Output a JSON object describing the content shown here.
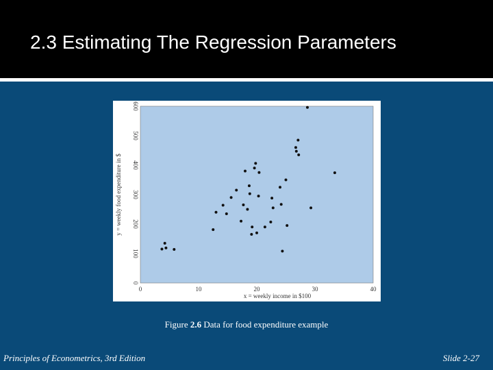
{
  "slide": {
    "title": "2.3 Estimating The Regression Parameters",
    "footer_left": "Principles of Econometrics, 3rd Edition",
    "footer_right": "Slide 2-27"
  },
  "caption": {
    "prefix": "Figure ",
    "number": "2.6",
    "text": " Data for food expenditure example"
  },
  "colors": {
    "background": "#0a4a78",
    "plot_area": "#aecbe8",
    "points": "#111111"
  },
  "chart_data": {
    "type": "scatter",
    "title": "",
    "xlabel": "x = weekly income in $100",
    "ylabel": "y = weekly food expenditure in $",
    "xlim": [
      0,
      40
    ],
    "ylim": [
      0,
      600
    ],
    "xticks": [
      0,
      10,
      20,
      30,
      40
    ],
    "yticks": [
      0,
      100,
      200,
      300,
      400,
      500,
      600
    ],
    "grid": false,
    "legend": "none",
    "series": [
      {
        "points": [
          [
            3.7,
            115
          ],
          [
            4.2,
            135
          ],
          [
            4.4,
            119
          ],
          [
            5.8,
            114
          ],
          [
            12.5,
            181
          ],
          [
            13.0,
            240
          ],
          [
            14.2,
            264
          ],
          [
            14.8,
            235
          ],
          [
            15.6,
            290
          ],
          [
            16.5,
            315
          ],
          [
            17.3,
            210
          ],
          [
            17.7,
            265
          ],
          [
            18.0,
            380
          ],
          [
            18.4,
            250
          ],
          [
            18.7,
            330
          ],
          [
            18.8,
            303
          ],
          [
            19.1,
            165
          ],
          [
            19.2,
            190
          ],
          [
            19.6,
            390
          ],
          [
            19.8,
            406
          ],
          [
            20.0,
            170
          ],
          [
            20.3,
            295
          ],
          [
            20.4,
            375
          ],
          [
            21.4,
            190
          ],
          [
            22.4,
            207
          ],
          [
            22.6,
            288
          ],
          [
            22.8,
            255
          ],
          [
            24.0,
            325
          ],
          [
            24.2,
            267
          ],
          [
            24.4,
            108
          ],
          [
            25.0,
            350
          ],
          [
            25.2,
            195
          ],
          [
            26.7,
            460
          ],
          [
            26.8,
            447
          ],
          [
            27.1,
            485
          ],
          [
            27.2,
            435
          ],
          [
            28.7,
            596
          ],
          [
            29.3,
            255
          ],
          [
            33.4,
            374
          ]
        ]
      }
    ]
  }
}
